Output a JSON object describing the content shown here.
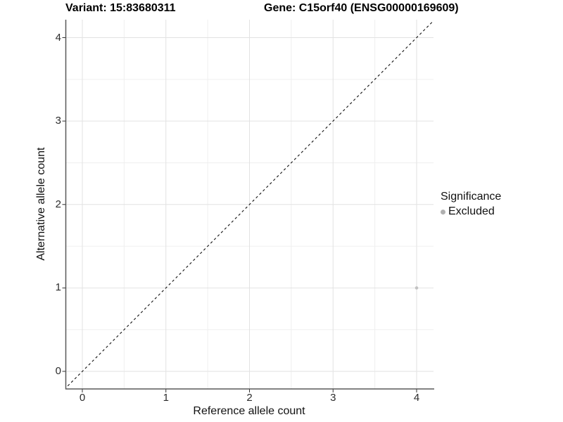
{
  "header": {
    "title_left": "Variant: 15:83680311",
    "title_right": "Gene: C15orf40 (ENSG00000169609)"
  },
  "chart_data": {
    "type": "scatter",
    "title_left": "Variant: 15:83680311",
    "title_right": "Gene: C15orf40 (ENSG00000169609)",
    "xlabel": "Reference allele count",
    "ylabel": "Alternative allele count",
    "xlim": [
      -0.2,
      4.2
    ],
    "ylim": [
      -0.2,
      4.2
    ],
    "x_ticks": [
      0,
      1,
      2,
      3,
      4
    ],
    "y_ticks": [
      0,
      1,
      2,
      3,
      4
    ],
    "x_minor_ticks": [
      0.5,
      1.5,
      2.5,
      3.5
    ],
    "y_minor_ticks": [
      0.5,
      1.5,
      2.5,
      3.5
    ],
    "grid": "major and minor, light gray on white",
    "identity_line": {
      "type": "abline",
      "slope": 1,
      "intercept": 0,
      "style": "dashed",
      "color": "#111111"
    },
    "series": [
      {
        "name": "Excluded",
        "color": "#c2c2c2",
        "points": [
          {
            "x": 4,
            "y": 1
          }
        ]
      }
    ],
    "legend": {
      "title": "Significance",
      "position": "right",
      "entries": [
        {
          "label": "Excluded",
          "color": "#b0b0b0"
        }
      ]
    }
  },
  "colors": {
    "background": "#ffffff",
    "grid_major": "#e2e2e2",
    "grid_minor": "#efefef",
    "axis_line": "#595959",
    "tick_mark": "#333333",
    "tick_label": "#2b2b2b",
    "point": "#c2c2c2"
  }
}
